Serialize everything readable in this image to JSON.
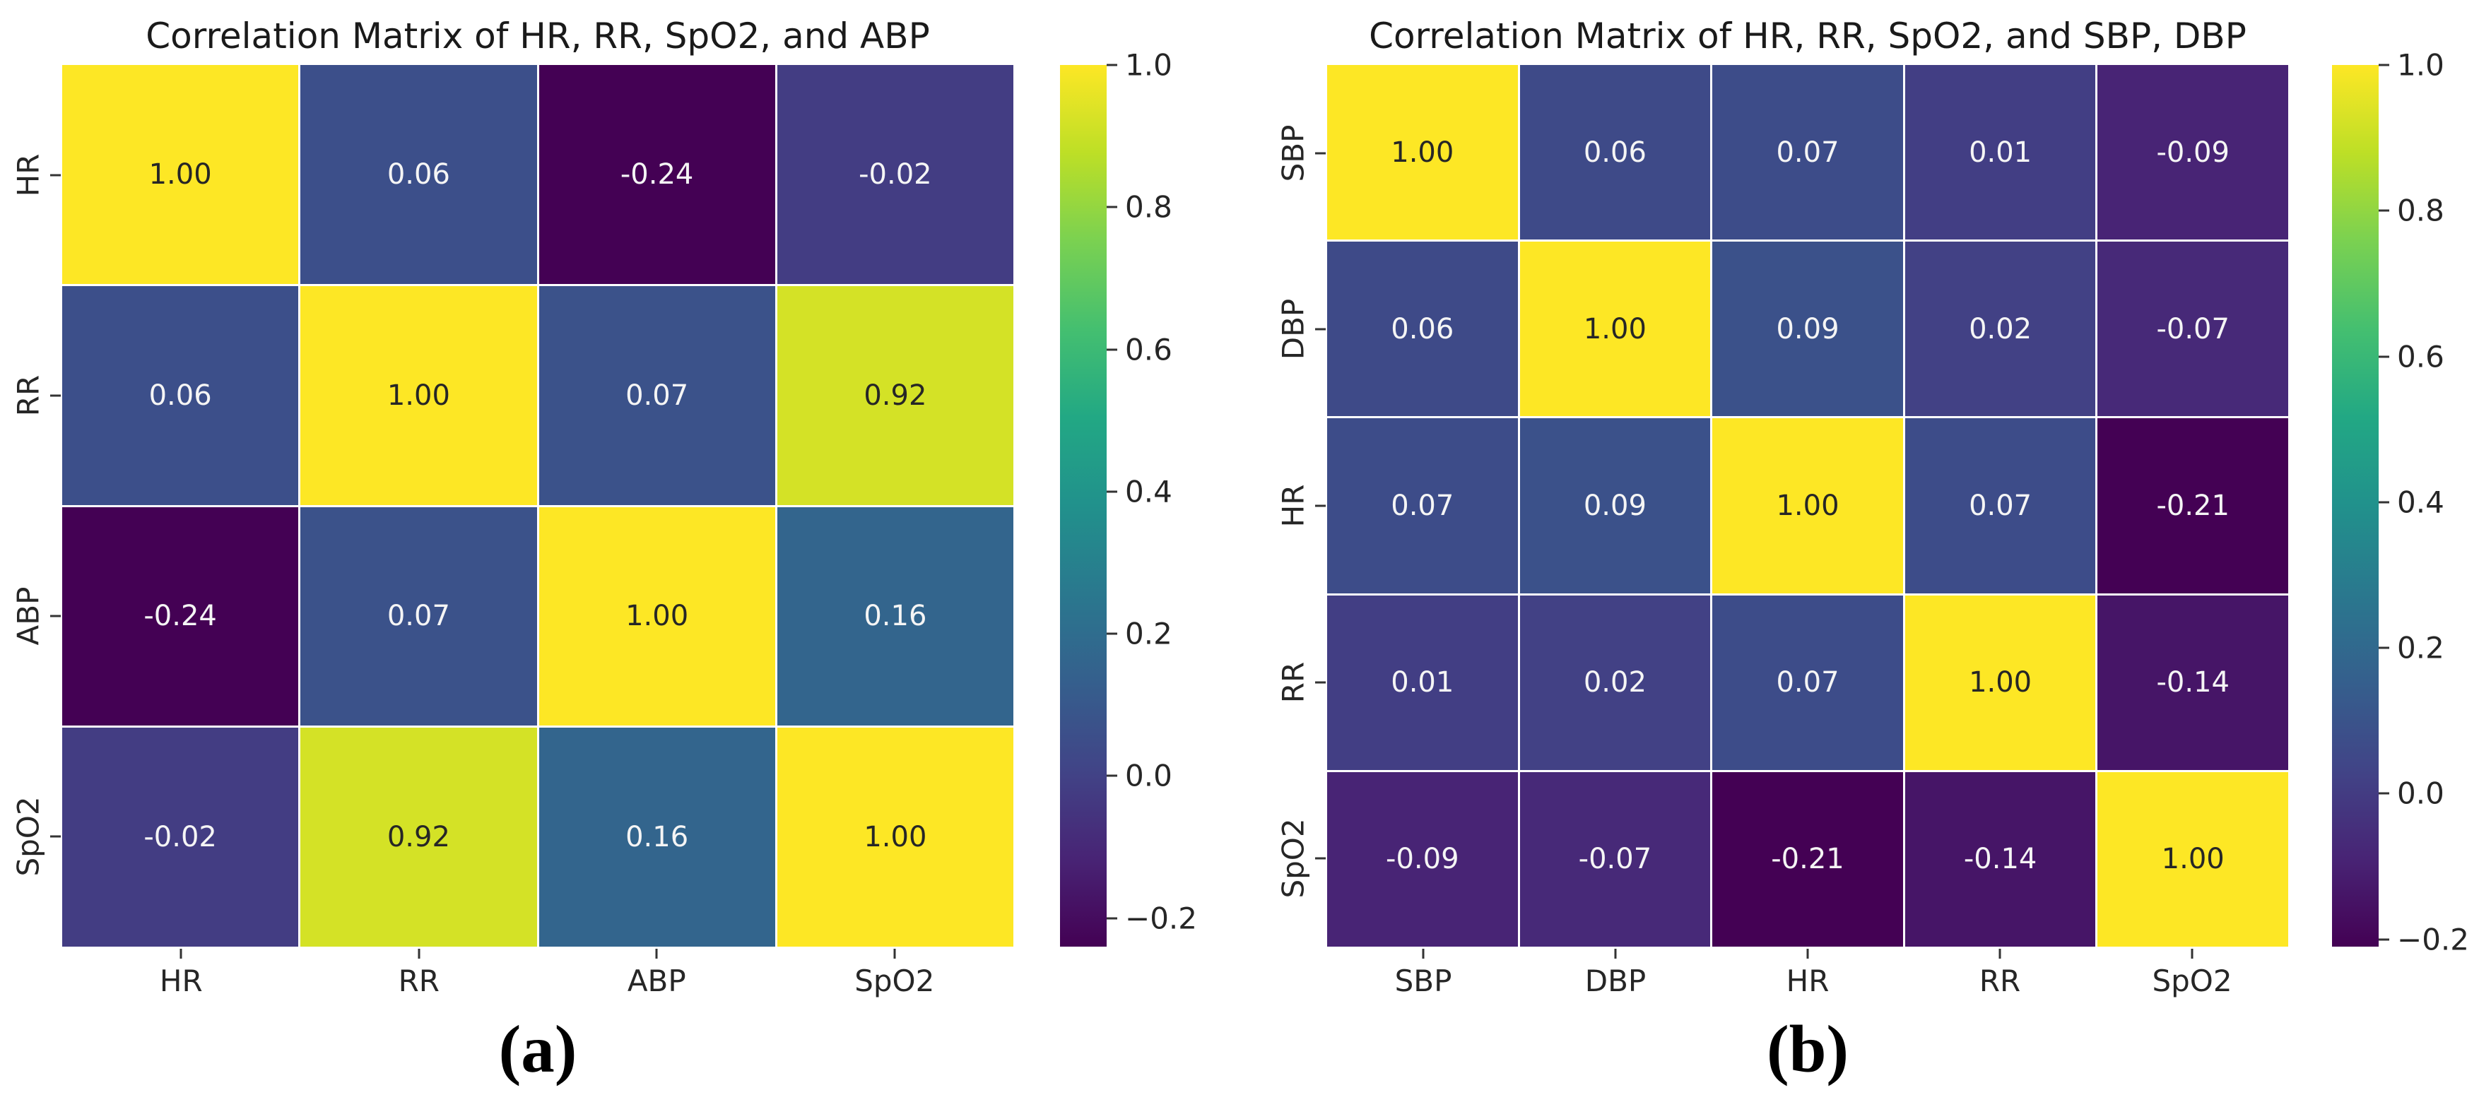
{
  "chart_data": [
    {
      "type": "heatmap",
      "title": "Correlation Matrix of HR, RR, SpO2, and ABP",
      "caption": "(a)",
      "labels": [
        "HR",
        "RR",
        "ABP",
        "SpO2"
      ],
      "matrix": [
        [
          1.0,
          0.06,
          -0.24,
          -0.02
        ],
        [
          0.06,
          1.0,
          0.07,
          0.92
        ],
        [
          -0.24,
          0.07,
          1.0,
          0.16
        ],
        [
          -0.02,
          0.92,
          0.16,
          1.0
        ]
      ],
      "vmin": -0.24,
      "vmax": 1.0,
      "colorbar_ticks": [
        1.0,
        0.8,
        0.6,
        0.4,
        0.2,
        0.0,
        -0.2
      ],
      "colormap": "viridis",
      "annotation_format": ".2f",
      "legend_position": "right-colorbar",
      "grid": "white-lines"
    },
    {
      "type": "heatmap",
      "title": "Correlation Matrix of HR, RR, SpO2, and SBP, DBP",
      "caption": "(b)",
      "labels": [
        "SBP",
        "DBP",
        "HR",
        "RR",
        "SpO2"
      ],
      "matrix": [
        [
          1.0,
          0.06,
          0.07,
          0.01,
          -0.09
        ],
        [
          0.06,
          1.0,
          0.09,
          0.02,
          -0.07
        ],
        [
          0.07,
          0.09,
          1.0,
          0.07,
          -0.21
        ],
        [
          0.01,
          0.02,
          0.07,
          1.0,
          -0.14
        ],
        [
          -0.09,
          -0.07,
          -0.21,
          -0.14,
          1.0
        ]
      ],
      "vmin": -0.21,
      "vmax": 1.0,
      "colorbar_ticks": [
        1.0,
        0.8,
        0.6,
        0.4,
        0.2,
        0.0,
        -0.2
      ],
      "colormap": "viridis",
      "annotation_format": ".2f",
      "legend_position": "right-colorbar",
      "grid": "white-lines"
    }
  ],
  "colors": {
    "background": "#ffffff",
    "dark_annotation_text": "#262626",
    "light_annotation_text": "#f5f5f5",
    "axis_text": "#262626",
    "title_text": "#1a1a1a",
    "viridis_stops": [
      "#440154",
      "#482475",
      "#414487",
      "#355f8d",
      "#2a788e",
      "#21918c",
      "#22a884",
      "#44bf70",
      "#7ad151",
      "#bddf26",
      "#fde725"
    ]
  }
}
